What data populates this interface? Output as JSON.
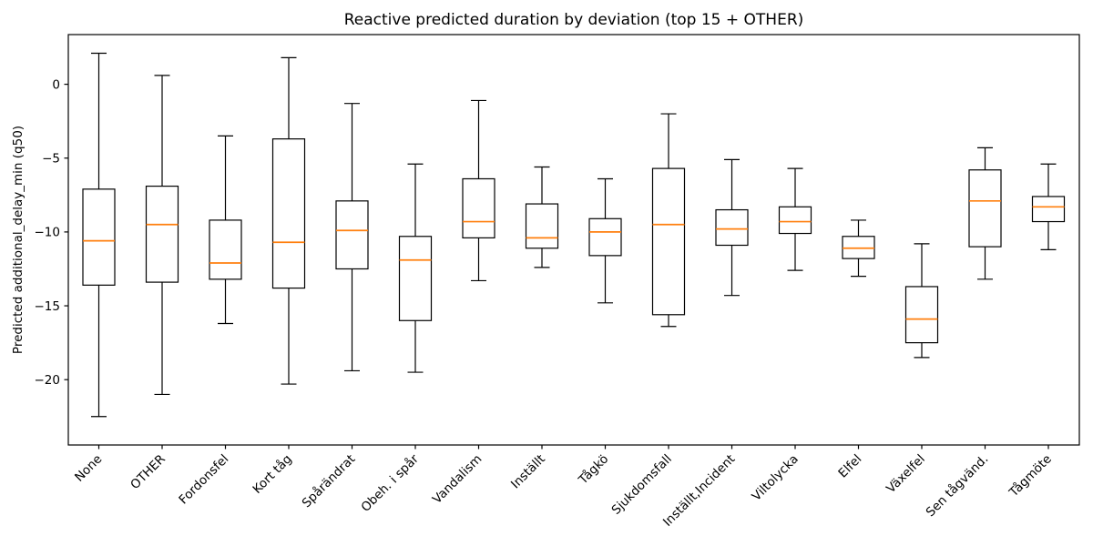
{
  "chart_data": {
    "type": "box",
    "title": "Reactive predicted duration by deviation (top 15 + OTHER)",
    "xlabel": "",
    "ylabel": "Predicted additional_delay_min (q50)",
    "grid": false,
    "legend": "none",
    "ylim": [
      -24.4,
      3.4
    ],
    "yticks": {
      "values": [
        0,
        -5,
        -10,
        -15,
        -20
      ],
      "labels": [
        "0",
        "−5",
        "−10",
        "−15",
        "−20"
      ]
    },
    "x_tick_rotation_deg": 45,
    "categories": [
      "None",
      "OTHER",
      "Fordonsfel",
      "Kort tåg",
      "Spårändrat",
      "Obeh. i spår",
      "Vandalism",
      "Inställt",
      "Tågkö",
      "Sjukdomsfall",
      "Inställt,Incident",
      "Viltolycka",
      "Elfel",
      "Växelfel",
      "Sen tågvänd.",
      "Tågmöte"
    ],
    "series": [
      {
        "name": "None",
        "whislo": -22.5,
        "q1": -13.6,
        "med": -10.6,
        "q3": -7.1,
        "whishi": 2.1
      },
      {
        "name": "OTHER",
        "whislo": -21.0,
        "q1": -13.4,
        "med": -9.5,
        "q3": -6.9,
        "whishi": 0.6
      },
      {
        "name": "Fordonsfel",
        "whislo": -16.2,
        "q1": -13.2,
        "med": -12.1,
        "q3": -9.2,
        "whishi": -3.5
      },
      {
        "name": "Kort tåg",
        "whislo": -20.3,
        "q1": -13.8,
        "med": -10.7,
        "q3": -3.7,
        "whishi": 1.8
      },
      {
        "name": "Spårändrat",
        "whislo": -19.4,
        "q1": -12.5,
        "med": -9.9,
        "q3": -7.9,
        "whishi": -1.3
      },
      {
        "name": "Obeh. i spår",
        "whislo": -19.5,
        "q1": -16.0,
        "med": -11.9,
        "q3": -10.3,
        "whishi": -5.4
      },
      {
        "name": "Vandalism",
        "whislo": -13.3,
        "q1": -10.4,
        "med": -9.3,
        "q3": -6.4,
        "whishi": -1.1
      },
      {
        "name": "Inställt",
        "whislo": -12.4,
        "q1": -11.1,
        "med": -10.4,
        "q3": -8.1,
        "whishi": -5.6
      },
      {
        "name": "Tågkö",
        "whislo": -14.8,
        "q1": -11.6,
        "med": -10.0,
        "q3": -9.1,
        "whishi": -6.4
      },
      {
        "name": "Sjukdomsfall",
        "whislo": -16.4,
        "q1": -15.6,
        "med": -9.5,
        "q3": -5.7,
        "whishi": -2.0
      },
      {
        "name": "Inställt,Incident",
        "whislo": -14.3,
        "q1": -10.9,
        "med": -9.8,
        "q3": -8.5,
        "whishi": -5.1
      },
      {
        "name": "Viltolycka",
        "whislo": -12.6,
        "q1": -10.1,
        "med": -9.3,
        "q3": -8.3,
        "whishi": -5.7
      },
      {
        "name": "Elfel",
        "whislo": -13.0,
        "q1": -11.8,
        "med": -11.1,
        "q3": -10.3,
        "whishi": -9.2
      },
      {
        "name": "Växelfel",
        "whislo": -18.5,
        "q1": -17.5,
        "med": -15.9,
        "q3": -13.7,
        "whishi": -10.8
      },
      {
        "name": "Sen tågvänd.",
        "whislo": -13.2,
        "q1": -11.0,
        "med": -7.9,
        "q3": -5.8,
        "whishi": -4.3
      },
      {
        "name": "Tågmöte",
        "whislo": -11.2,
        "q1": -9.3,
        "med": -8.3,
        "q3": -7.6,
        "whishi": -5.4
      }
    ],
    "colors": {
      "median": "#ff7f0e",
      "box_edge": "#000000",
      "whisker": "#000000",
      "background": "#ffffff",
      "text": "#000000"
    }
  }
}
